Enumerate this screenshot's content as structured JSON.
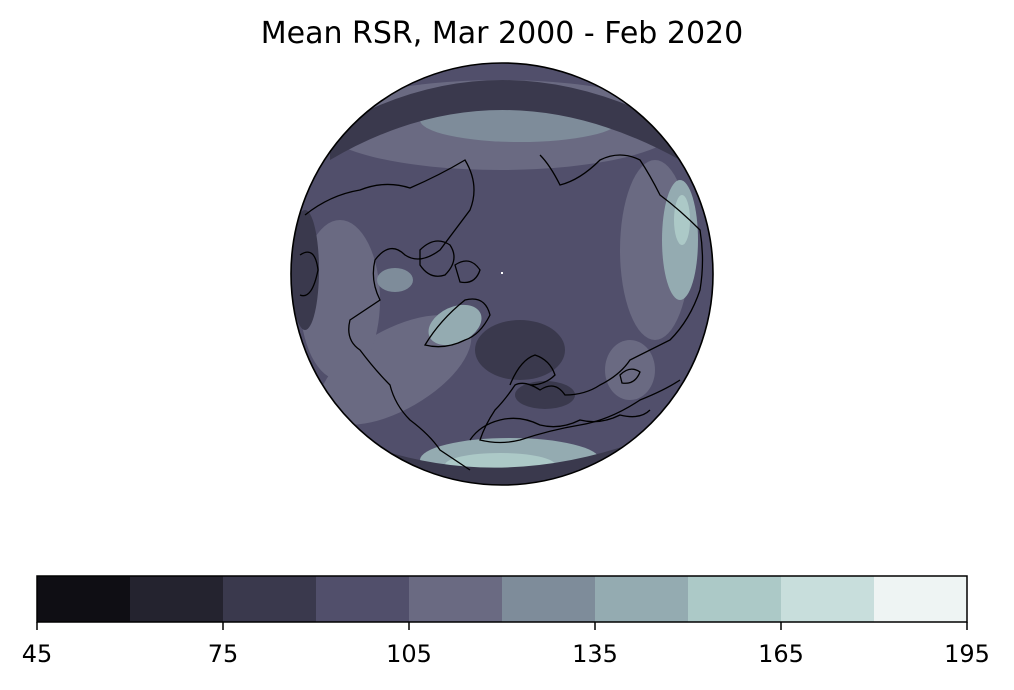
{
  "title": "Mean RSR, Mar 2000 - Feb 2020",
  "colorbar": {
    "levels": [
      45,
      60,
      75,
      90,
      105,
      120,
      135,
      150,
      165,
      180,
      195
    ],
    "colors": [
      "#0f0e14",
      "#24232f",
      "#3a394d",
      "#514f6b",
      "#6a6a82",
      "#7e8c9a",
      "#94abb1",
      "#acc9c7",
      "#c8dedc",
      "#eef4f3"
    ],
    "tick_values": [
      "45",
      "75",
      "105",
      "135",
      "165",
      "195"
    ]
  },
  "map": {
    "projection": "orthographic",
    "center": "north-pole",
    "ocean_color": "#514f6b",
    "coastline_color": "#000000"
  }
}
